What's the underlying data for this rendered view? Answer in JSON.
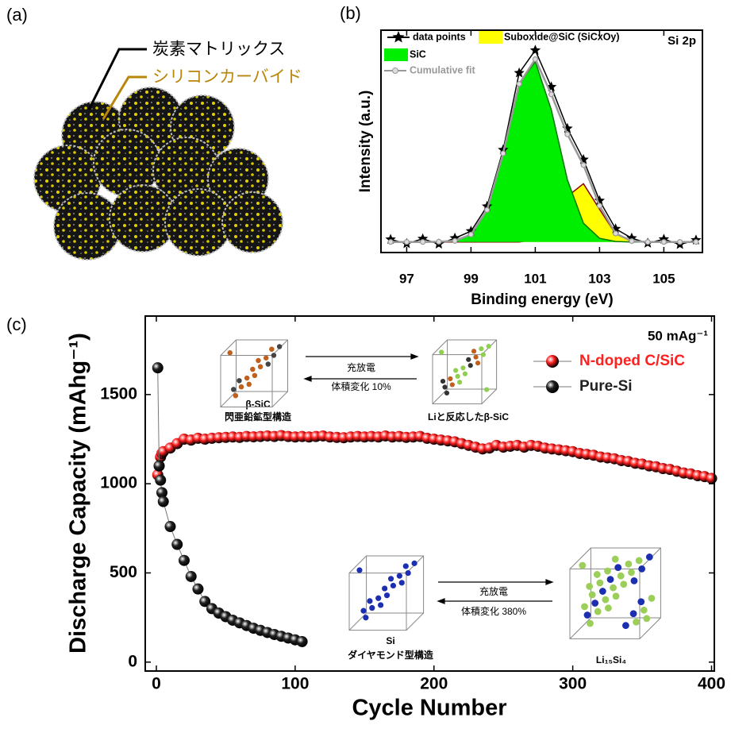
{
  "panel_labels": [
    "(a)",
    "(b)",
    "(c)"
  ],
  "illustration": {
    "labels": [
      "炭素マトリックス",
      "シリコンカーバイド"
    ]
  },
  "chart_data": [
    {
      "type": "line",
      "annotation": "Si 2p",
      "x_label": "Binding energy (eV)",
      "y_label": "Intensity (a.u.)",
      "x": [
        96.5,
        97,
        97.5,
        98,
        98.5,
        99,
        99.5,
        100,
        100.5,
        101,
        101.5,
        102,
        102.5,
        103,
        103.5,
        104,
        104.5,
        105,
        105.5,
        106
      ],
      "xlim": [
        96.2,
        106.2
      ],
      "xticks": [
        97,
        99,
        101,
        103,
        105
      ],
      "ylim": [
        -5,
        100
      ],
      "series": [
        {
          "name": "data points",
          "color": "#000000",
          "marker": "star",
          "values": [
            1.2,
            -0.8,
            1.5,
            -1.0,
            1.8,
            5.1,
            16.8,
            43.5,
            79.8,
            90.5,
            73.2,
            53.6,
            38.9,
            19.5,
            6.2,
            1.8,
            -0.6,
            1.3,
            -1.2,
            0.9
          ]
        },
        {
          "name": "Suboxide@SiC (SiCxOy)",
          "color": "#ffff00",
          "edge": "#8b0000",
          "fill": true,
          "values": [
            0,
            0,
            0,
            0,
            0,
            0,
            0,
            0,
            0,
            1.1,
            7.3,
            21.5,
            27.5,
            15.4,
            3.8,
            0.4,
            0,
            0,
            0,
            0
          ]
        },
        {
          "name": "SiC",
          "color": "#00ee00",
          "edge": "#007700",
          "fill": true,
          "values": [
            0,
            0,
            0,
            0.05,
            0.5,
            3.5,
            15.1,
            41.8,
            74.6,
            85.2,
            62.4,
            29.3,
            8.8,
            1.7,
            0.2,
            0,
            0,
            0,
            0,
            0
          ]
        },
        {
          "name": "Cumulative fit",
          "color": "#999999",
          "marker": "circle",
          "values": [
            0,
            0,
            0,
            0.1,
            0.5,
            3.5,
            15.1,
            41.8,
            74.6,
            86.3,
            69.7,
            50.8,
            36.3,
            17.1,
            4.0,
            0.4,
            0,
            0,
            0,
            0
          ]
        }
      ]
    },
    {
      "type": "scatter",
      "annotation": "50 mAg⁻¹",
      "x_label": "Cycle Number",
      "y_label": "Discharge Capacity (mAhg⁻¹)",
      "x": [
        1,
        2,
        3,
        4,
        5,
        10,
        15,
        20,
        25,
        30,
        35,
        40,
        45,
        50,
        55,
        60,
        65,
        70,
        75,
        80,
        85,
        90,
        95,
        100,
        105,
        110,
        115,
        120,
        125,
        130,
        135,
        140,
        145,
        150,
        155,
        160,
        165,
        170,
        175,
        180,
        185,
        190,
        195,
        200,
        205,
        210,
        215,
        220,
        225,
        230,
        235,
        240,
        245,
        250,
        255,
        260,
        265,
        270,
        275,
        280,
        285,
        290,
        295,
        300,
        305,
        310,
        315,
        320,
        325,
        330,
        335,
        340,
        345,
        350,
        355,
        360,
        365,
        370,
        375,
        380,
        385,
        390,
        395,
        400
      ],
      "xlim": [
        -8,
        402
      ],
      "xticks": [
        0,
        100,
        200,
        300,
        400
      ],
      "ylim": [
        -50,
        1940
      ],
      "yticks": [
        0,
        500,
        1000,
        1500
      ],
      "legend": "upper right",
      "series": [
        {
          "name": "N-doped C/SiC",
          "color": "#ff2020",
          "values": [
            1050,
            1100,
            1150,
            1170,
            1180,
            1200,
            1225,
            1250,
            1245,
            1255,
            1250,
            1255,
            1258,
            1260,
            1262,
            1260,
            1265,
            1263,
            1265,
            1268,
            1265,
            1270,
            1265,
            1262,
            1265,
            1262,
            1265,
            1268,
            1262,
            1260,
            1258,
            1262,
            1265,
            1262,
            1265,
            1262,
            1268,
            1262,
            1265,
            1260,
            1262,
            1265,
            1255,
            1250,
            1245,
            1240,
            1235,
            1225,
            1215,
            1205,
            1195,
            1200,
            1215,
            1205,
            1210,
            1215,
            1205,
            1215,
            1210,
            1200,
            1195,
            1190,
            1185,
            1180,
            1170,
            1165,
            1160,
            1150,
            1145,
            1140,
            1130,
            1125,
            1115,
            1110,
            1100,
            1095,
            1085,
            1080,
            1070,
            1060,
            1055,
            1045,
            1040,
            1030
          ]
        },
        {
          "name": "Pure-Si",
          "color": "#222222",
          "values": [
            1650,
            1100,
            1020,
            950,
            900,
            760,
            660,
            570,
            480,
            410,
            340,
            300,
            275,
            255,
            235,
            220,
            205,
            190,
            178,
            166,
            155,
            145,
            135,
            125,
            115,
            null,
            null,
            null,
            null,
            null,
            null,
            null,
            null,
            null,
            null,
            null,
            null,
            null,
            null,
            null,
            null,
            null,
            null,
            null,
            null,
            null,
            null,
            null,
            null,
            null,
            null,
            null,
            null,
            null,
            null,
            null,
            null,
            null,
            null,
            null,
            null,
            null,
            null,
            null,
            null,
            null,
            null,
            null,
            null,
            null,
            null,
            null,
            null,
            null,
            null,
            null,
            null,
            null,
            null,
            null,
            null,
            null,
            null,
            null
          ]
        }
      ]
    }
  ],
  "insets": {
    "sic": {
      "forward": "充放電",
      "volume": "体積変化  10%",
      "left_name": "β-SiC",
      "left_structure": "閃亜鉛鉱型構造",
      "right_name": "Liと反応したβ-SiC"
    },
    "si": {
      "forward": "充放電",
      "volume": "体積変化  380%",
      "left_name": "Si",
      "left_structure": "ダイヤモンド型構造",
      "right_name": "Li₁₅Si₄"
    }
  }
}
